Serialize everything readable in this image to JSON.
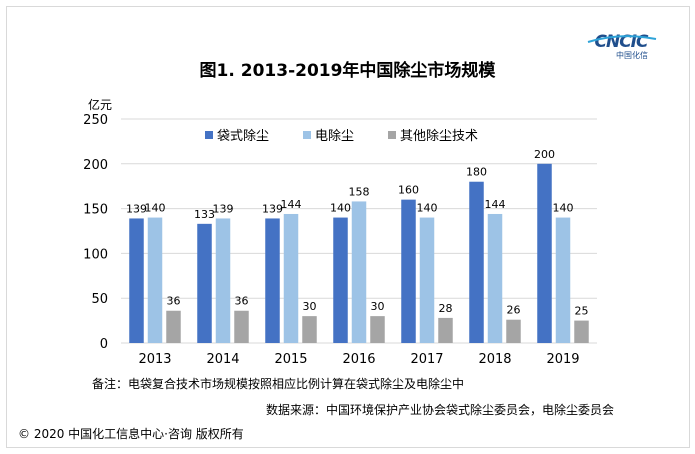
{
  "logo": {
    "text": "CNCIC",
    "subtext": "中国化信"
  },
  "footer": {
    "note": "备注：电袋复合技术市场规模按照相应比例计算在袋式除尘及电除尘中",
    "source": "数据来源：中国环境保护产业协会袋式除尘委员会，电除尘委员会",
    "copyright": "© 2020 中国化工信息中心·咨询 版权所有"
  },
  "chart_data": {
    "type": "bar",
    "title": "图1. 2013-2019年中国除尘市场规模",
    "ylabel": "亿元",
    "xlabel": "",
    "ylim": [
      0,
      250
    ],
    "yticks": [
      0,
      50,
      100,
      150,
      200,
      250
    ],
    "grid": true,
    "legend_position": "top",
    "categories": [
      "2013",
      "2014",
      "2015",
      "2016",
      "2017",
      "2018",
      "2019"
    ],
    "series": [
      {
        "name": "袋式除尘",
        "color": "#4472c4",
        "values": [
          139,
          133,
          139,
          140,
          160,
          180,
          200
        ]
      },
      {
        "name": "电除尘",
        "color": "#9dc3e6",
        "values": [
          140,
          139,
          144,
          158,
          140,
          144,
          140
        ]
      },
      {
        "name": "其他除尘技术",
        "color": "#a5a5a5",
        "values": [
          36,
          36,
          30,
          30,
          28,
          26,
          25
        ]
      }
    ]
  }
}
